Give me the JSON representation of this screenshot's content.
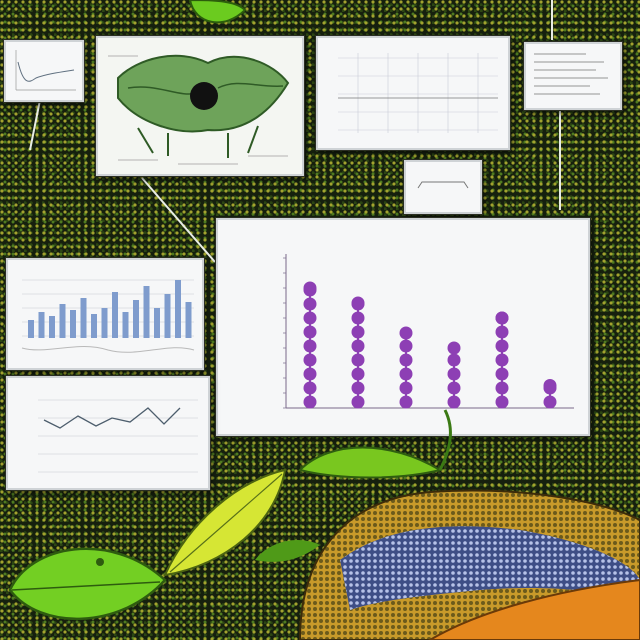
{
  "scene": {
    "description_elements": [
      "jungle-background",
      "leaf-cluster",
      "snake",
      "data-panels"
    ]
  },
  "colors": {
    "background": "#16200e",
    "leaf_bright": "#7ed321",
    "leaf_yellow": "#d8ea2a",
    "panel_bg": "#f6f7f8",
    "dot_purple": "#8d3fb4",
    "bar_blue": "#7f9ccd",
    "snake_orange": "#e5871d"
  },
  "panels": {
    "main_chart_title": "",
    "main_chart_footer": "",
    "main_chart_ylabel": ""
  },
  "chart_data": {
    "type": "scatter",
    "title": "",
    "xlabel": "",
    "ylabel": "",
    "ylim": [
      0,
      10
    ],
    "categories": [
      "",
      "",
      "",
      "",
      "",
      ""
    ],
    "series": [
      {
        "values": [
          8,
          7,
          5,
          4,
          6,
          1.5
        ]
      }
    ]
  }
}
